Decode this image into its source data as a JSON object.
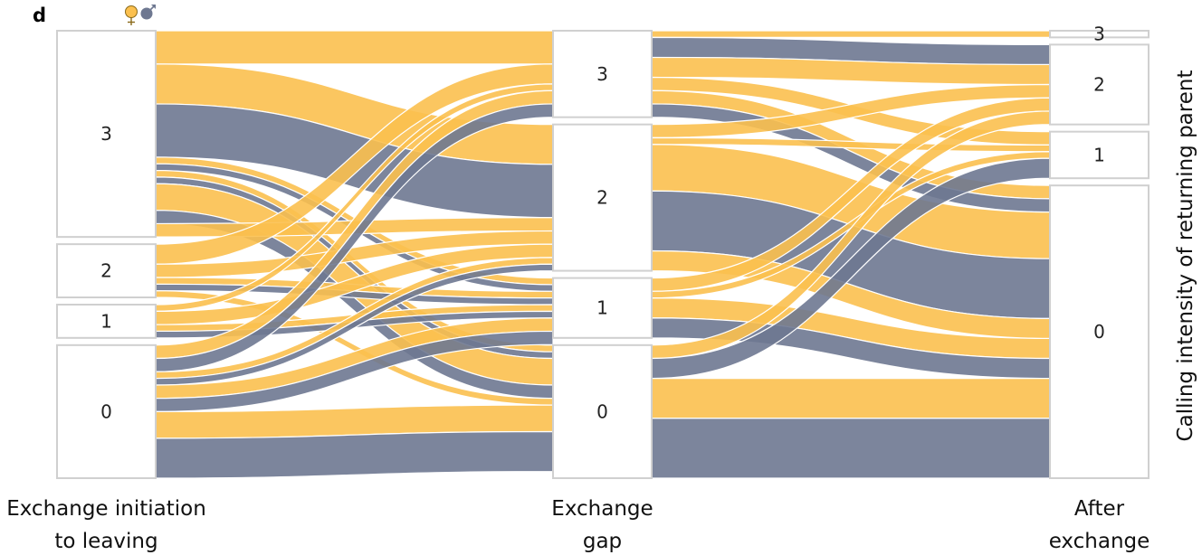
{
  "panel_letter": "d",
  "legend": {
    "female_symbol": "♀",
    "male_symbol": "♂",
    "female_color": "#fbc04f",
    "male_color": "#6e7891"
  },
  "y_axis_label": "Calling intensity of returning parent",
  "chart_data": {
    "type": "alluvial",
    "stages": [
      {
        "key": "s0",
        "label_lines": [
          "Exchange initiation",
          "to leaving"
        ]
      },
      {
        "key": "s1",
        "label_lines": [
          "Exchange",
          "gap"
        ]
      },
      {
        "key": "s2",
        "label_lines": [
          "After",
          "exchange"
        ]
      }
    ],
    "categories": [
      "3",
      "2",
      "1",
      "0"
    ],
    "node_values": {
      "s0": {
        "3": 31,
        "2": 8,
        "1": 5,
        "0": 20
      },
      "s1": {
        "3": 13,
        "2": 22,
        "1": 9,
        "0": 20
      },
      "s2": {
        "3": 1,
        "2": 12,
        "1": 7,
        "0": 44
      }
    },
    "series": [
      {
        "name": "female",
        "color": "#fbc04f"
      },
      {
        "name": "male",
        "color": "#6e7891"
      }
    ],
    "flows_s0_s1": [
      {
        "from": "3",
        "to": "3",
        "sex": "female",
        "v": 5
      },
      {
        "from": "3",
        "to": "2",
        "sex": "female",
        "v": 6
      },
      {
        "from": "3",
        "to": "2",
        "sex": "male",
        "v": 8
      },
      {
        "from": "3",
        "to": "1",
        "sex": "female",
        "v": 1
      },
      {
        "from": "3",
        "to": "1",
        "sex": "male",
        "v": 1
      },
      {
        "from": "3",
        "to": "0",
        "sex": "female",
        "v": 1
      },
      {
        "from": "3",
        "to": "0",
        "sex": "male",
        "v": 1
      },
      {
        "from": "3",
        "to": "0",
        "sex": "female",
        "v": 4
      },
      {
        "from": "3",
        "to": "0",
        "sex": "male",
        "v": 2
      },
      {
        "from": "3",
        "to": "2",
        "sex": "female",
        "v": 2
      },
      {
        "from": "2",
        "to": "3",
        "sex": "female",
        "v": 3
      },
      {
        "from": "2",
        "to": "2",
        "sex": "female",
        "v": 2
      },
      {
        "from": "2",
        "to": "1",
        "sex": "female",
        "v": 1
      },
      {
        "from": "2",
        "to": "1",
        "sex": "male",
        "v": 1
      },
      {
        "from": "2",
        "to": "0",
        "sex": "female",
        "v": 1
      },
      {
        "from": "1",
        "to": "3",
        "sex": "female",
        "v": 1
      },
      {
        "from": "1",
        "to": "2",
        "sex": "female",
        "v": 2
      },
      {
        "from": "1",
        "to": "1",
        "sex": "female",
        "v": 1
      },
      {
        "from": "1",
        "to": "1",
        "sex": "male",
        "v": 1
      },
      {
        "from": "0",
        "to": "3",
        "sex": "female",
        "v": 2
      },
      {
        "from": "0",
        "to": "3",
        "sex": "male",
        "v": 2
      },
      {
        "from": "0",
        "to": "2",
        "sex": "female",
        "v": 1
      },
      {
        "from": "0",
        "to": "2",
        "sex": "male",
        "v": 1
      },
      {
        "from": "0",
        "to": "1",
        "sex": "female",
        "v": 2
      },
      {
        "from": "0",
        "to": "1",
        "sex": "male",
        "v": 2
      },
      {
        "from": "0",
        "to": "0",
        "sex": "female",
        "v": 4
      },
      {
        "from": "0",
        "to": "0",
        "sex": "male",
        "v": 6
      }
    ],
    "flows_s1_s2": [
      {
        "from": "3",
        "to": "3",
        "sex": "female",
        "v": 1
      },
      {
        "from": "3",
        "to": "2",
        "sex": "male",
        "v": 3
      },
      {
        "from": "3",
        "to": "2",
        "sex": "female",
        "v": 3
      },
      {
        "from": "3",
        "to": "1",
        "sex": "female",
        "v": 2
      },
      {
        "from": "3",
        "to": "0",
        "sex": "female",
        "v": 2
      },
      {
        "from": "3",
        "to": "0",
        "sex": "male",
        "v": 2
      },
      {
        "from": "2",
        "to": "2",
        "sex": "female",
        "v": 2
      },
      {
        "from": "2",
        "to": "1",
        "sex": "female",
        "v": 1
      },
      {
        "from": "2",
        "to": "0",
        "sex": "female",
        "v": 7
      },
      {
        "from": "2",
        "to": "0",
        "sex": "male",
        "v": 9
      },
      {
        "from": "2",
        "to": "0",
        "sex": "female",
        "v": 3
      },
      {
        "from": "1",
        "to": "2",
        "sex": "female",
        "v": 2
      },
      {
        "from": "1",
        "to": "1",
        "sex": "female",
        "v": 1
      },
      {
        "from": "1",
        "to": "0",
        "sex": "female",
        "v": 3
      },
      {
        "from": "1",
        "to": "0",
        "sex": "male",
        "v": 3
      },
      {
        "from": "0",
        "to": "2",
        "sex": "female",
        "v": 2
      },
      {
        "from": "0",
        "to": "1",
        "sex": "male",
        "v": 3
      },
      {
        "from": "0",
        "to": "0",
        "sex": "female",
        "v": 6
      },
      {
        "from": "0",
        "to": "0",
        "sex": "male",
        "v": 9
      }
    ]
  }
}
